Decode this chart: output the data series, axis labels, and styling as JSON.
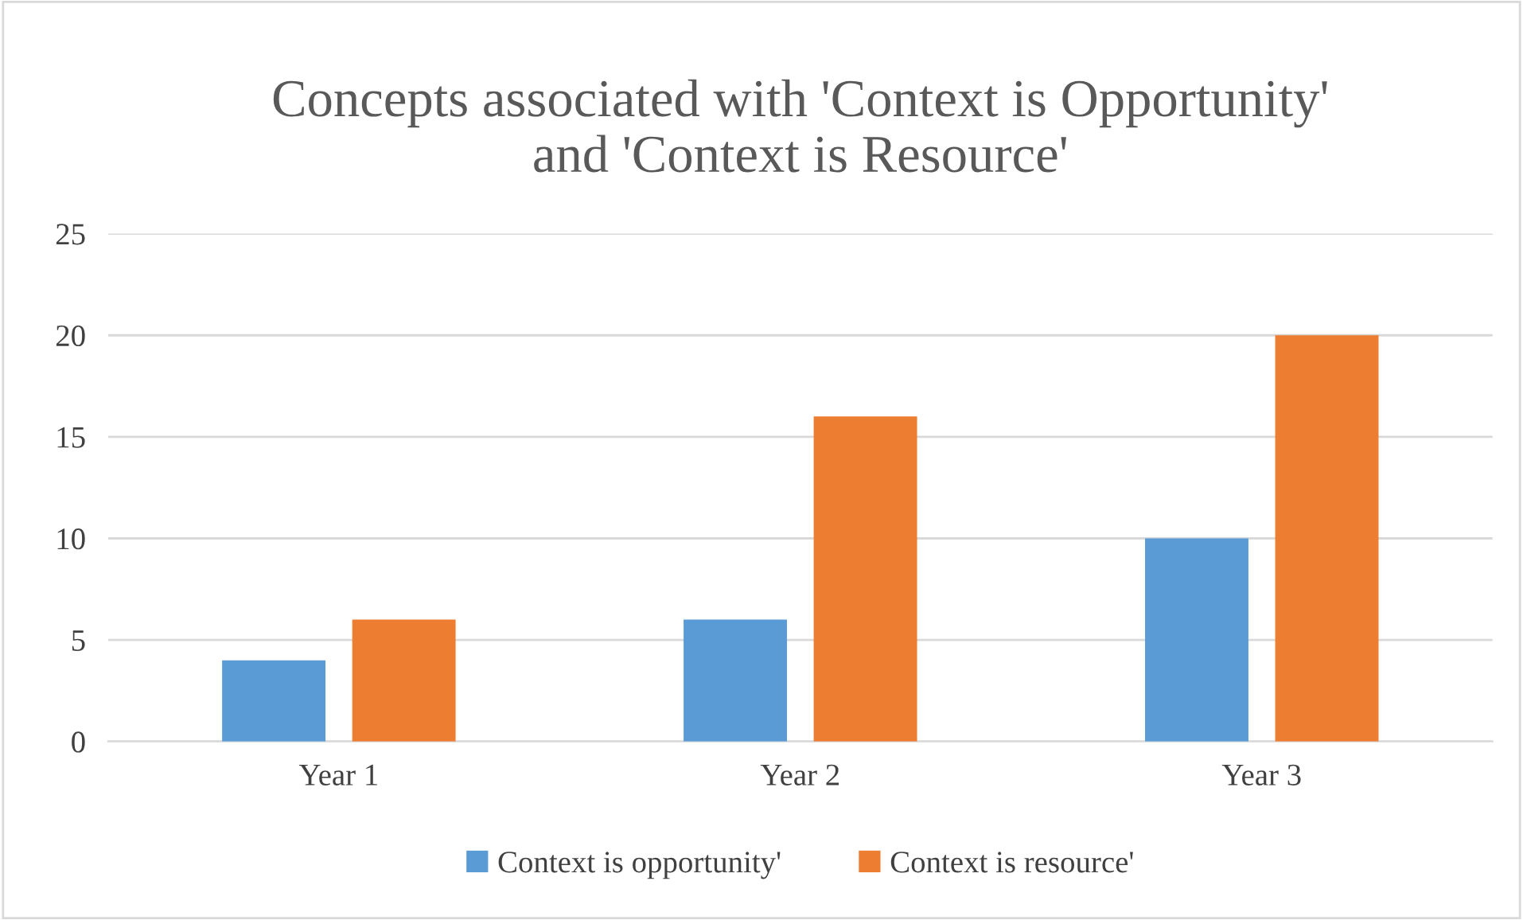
{
  "chart_data": {
    "type": "bar",
    "title": "Concepts associated with 'Context is Opportunity'\nand 'Context is Resource'",
    "categories": [
      "Year 1",
      "Year 2",
      "Year 3"
    ],
    "series": [
      {
        "name": "Context is opportunity'",
        "color": "#5b9bd5",
        "values": [
          4,
          6,
          10
        ]
      },
      {
        "name": "Context is resource'",
        "color": "#ed7d31",
        "values": [
          6,
          16,
          20
        ]
      }
    ],
    "ylim": [
      0,
      25
    ],
    "yticks": [
      0,
      5,
      10,
      15,
      20,
      25
    ],
    "grid": "y",
    "legend": "bottom"
  }
}
